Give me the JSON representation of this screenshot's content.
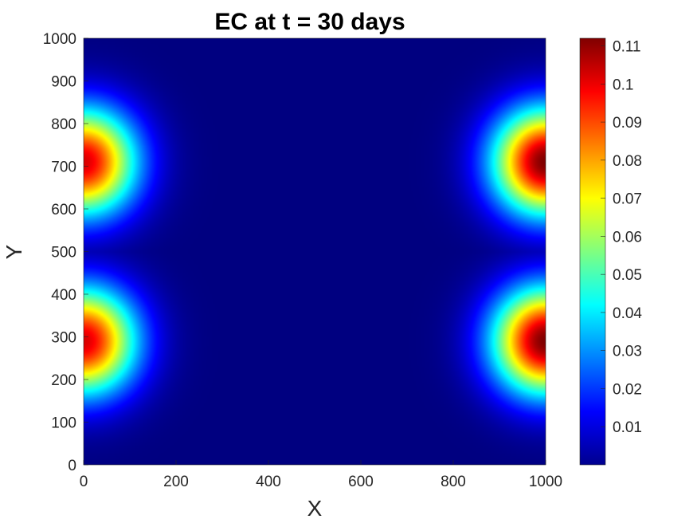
{
  "chart_data": {
    "type": "heatmap",
    "title": "EC at t = 30 days",
    "xlabel": "X",
    "ylabel": "Y",
    "xlim": [
      0,
      1000
    ],
    "ylim": [
      0,
      1000
    ],
    "x_ticks": [
      "0",
      "200",
      "400",
      "600",
      "800",
      "1000"
    ],
    "y_ticks": [
      "0",
      "100",
      "200",
      "300",
      "400",
      "500",
      "600",
      "700",
      "800",
      "900",
      "1000"
    ],
    "colormap": "jet",
    "colorbar": {
      "range": [
        0,
        0.112
      ],
      "ticks": [
        "0.01",
        "0.02",
        "0.03",
        "0.04",
        "0.05",
        "0.06",
        "0.07",
        "0.08",
        "0.09",
        "0.1",
        "0.11"
      ],
      "position": "right"
    },
    "peaks": [
      {
        "x": 1000,
        "y": 290,
        "value": 0.112
      },
      {
        "x": 1000,
        "y": 710,
        "value": 0.112
      },
      {
        "x": 0,
        "y": 290,
        "value": 0.102
      },
      {
        "x": 0,
        "y": 710,
        "value": 0.102
      }
    ],
    "background_value": 0.0,
    "grid": false
  }
}
